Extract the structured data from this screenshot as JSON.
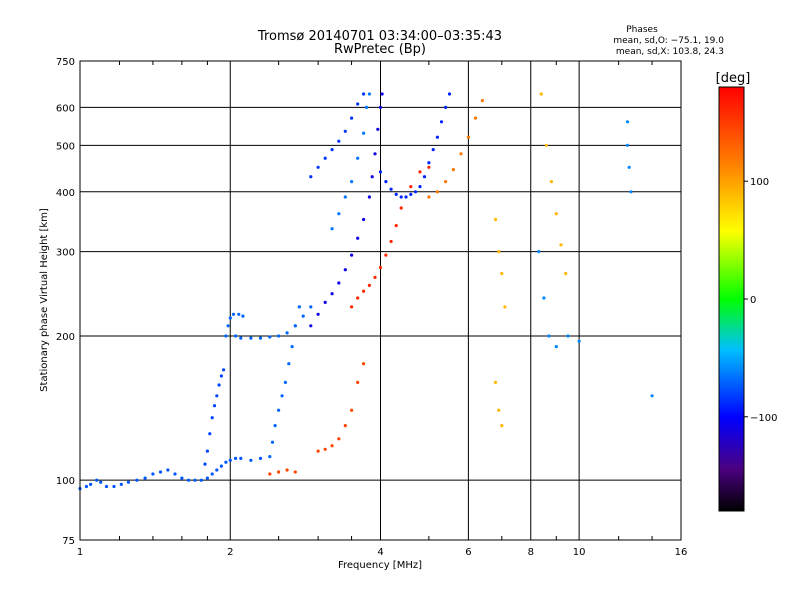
{
  "chart_data": {
    "type": "scatter",
    "title": "Tromsø 20140701 03:34:00–03:35:43",
    "subtitle": "RwPretec (Bp)",
    "xlabel": "Frequency [MHz]",
    "ylabel": "Stationary phase Virtual Height [km]",
    "x_scale": "log",
    "y_scale": "log",
    "xlim": [
      1,
      16
    ],
    "ylim": [
      75,
      750
    ],
    "x_ticks": [
      1,
      2,
      4,
      6,
      8,
      10,
      16
    ],
    "y_ticks": [
      75,
      100,
      200,
      300,
      400,
      500,
      600,
      750
    ],
    "grid": true,
    "phase_info": {
      "title": "Phases",
      "line_o": "mean, sd,O: −75.1, 19.0",
      "line_x": "mean, sd,X: 103.8, 24.3"
    },
    "colorbar": {
      "label": "[deg]",
      "min": -180,
      "max": 180,
      "ticks": [
        100,
        0,
        -100
      ],
      "colormap": "rainbow"
    },
    "series": [
      {
        "name": "",
        "color_value": -75,
        "points": [
          [
            1.0,
            96
          ],
          [
            1.03,
            97
          ],
          [
            1.05,
            98
          ],
          [
            1.08,
            100
          ],
          [
            1.1,
            99
          ],
          [
            1.13,
            97
          ],
          [
            1.17,
            97
          ],
          [
            1.21,
            98
          ],
          [
            1.25,
            99
          ],
          [
            1.3,
            100
          ],
          [
            1.35,
            101
          ],
          [
            1.4,
            103
          ],
          [
            1.45,
            104
          ],
          [
            1.5,
            105
          ],
          [
            1.55,
            103
          ],
          [
            1.6,
            101
          ],
          [
            1.65,
            100
          ],
          [
            1.7,
            100
          ],
          [
            1.75,
            100
          ],
          [
            1.8,
            101
          ],
          [
            1.84,
            103
          ],
          [
            1.88,
            105
          ],
          [
            1.92,
            107
          ],
          [
            1.96,
            109
          ],
          [
            2.0,
            110
          ],
          [
            2.05,
            111
          ],
          [
            2.1,
            111
          ],
          [
            2.2,
            110
          ],
          [
            2.3,
            111
          ]
        ]
      },
      {
        "name": "",
        "color_value": -80,
        "points": [
          [
            1.78,
            108
          ],
          [
            1.8,
            115
          ],
          [
            1.82,
            125
          ],
          [
            1.84,
            135
          ],
          [
            1.86,
            143
          ],
          [
            1.88,
            150
          ],
          [
            1.9,
            158
          ],
          [
            1.92,
            165
          ],
          [
            1.94,
            170
          ]
        ]
      },
      {
        "name": "",
        "color_value": -70,
        "points": [
          [
            1.96,
            200
          ],
          [
            1.98,
            210
          ],
          [
            2.0,
            218
          ],
          [
            2.03,
            222
          ],
          [
            2.08,
            222
          ],
          [
            2.12,
            220
          ],
          [
            2.05,
            200
          ],
          [
            2.1,
            198
          ],
          [
            2.2,
            198
          ],
          [
            2.3,
            198
          ],
          [
            2.4,
            199
          ],
          [
            2.5,
            200
          ],
          [
            2.6,
            203
          ],
          [
            2.7,
            210
          ],
          [
            2.8,
            220
          ],
          [
            2.9,
            230
          ]
        ]
      },
      {
        "name": "",
        "color_value": -70,
        "points": [
          [
            2.4,
            112
          ],
          [
            2.43,
            120
          ],
          [
            2.46,
            130
          ],
          [
            2.5,
            140
          ],
          [
            2.54,
            150
          ],
          [
            2.58,
            160
          ],
          [
            2.62,
            175
          ],
          [
            2.66,
            190
          ],
          [
            2.7,
            210
          ],
          [
            2.75,
            230
          ]
        ]
      },
      {
        "name": "",
        "color_value": -110,
        "points": [
          [
            2.9,
            210
          ],
          [
            3.0,
            222
          ],
          [
            3.1,
            235
          ],
          [
            3.2,
            245
          ],
          [
            3.3,
            258
          ],
          [
            3.4,
            275
          ],
          [
            3.5,
            295
          ],
          [
            3.6,
            320
          ],
          [
            3.7,
            350
          ],
          [
            3.8,
            390
          ],
          [
            3.85,
            430
          ],
          [
            3.9,
            480
          ],
          [
            3.95,
            540
          ],
          [
            4.0,
            600
          ],
          [
            4.03,
            640
          ]
        ]
      },
      {
        "name": "",
        "color_value": -65,
        "points": [
          [
            3.2,
            335
          ],
          [
            3.3,
            360
          ],
          [
            3.4,
            390
          ],
          [
            3.5,
            420
          ],
          [
            3.6,
            470
          ],
          [
            3.7,
            530
          ],
          [
            3.75,
            600
          ],
          [
            3.8,
            640
          ]
        ]
      },
      {
        "name": "",
        "color_value": -85,
        "points": [
          [
            2.9,
            430
          ],
          [
            3.0,
            450
          ],
          [
            3.1,
            470
          ],
          [
            3.2,
            490
          ],
          [
            3.3,
            510
          ],
          [
            3.4,
            535
          ],
          [
            3.5,
            570
          ],
          [
            3.6,
            610
          ],
          [
            3.7,
            640
          ]
        ]
      },
      {
        "name": "",
        "color_value": -90,
        "points": [
          [
            4.0,
            440
          ],
          [
            4.1,
            420
          ],
          [
            4.2,
            405
          ],
          [
            4.3,
            395
          ],
          [
            4.4,
            390
          ],
          [
            4.5,
            390
          ],
          [
            4.6,
            395
          ],
          [
            4.7,
            400
          ],
          [
            4.8,
            410
          ],
          [
            4.9,
            430
          ],
          [
            5.0,
            460
          ],
          [
            5.1,
            490
          ],
          [
            5.2,
            520
          ],
          [
            5.3,
            560
          ],
          [
            5.4,
            600
          ],
          [
            5.5,
            640
          ]
        ]
      },
      {
        "name": "",
        "color_value": 120,
        "points": [
          [
            5.0,
            390
          ],
          [
            5.2,
            400
          ],
          [
            5.4,
            420
          ],
          [
            5.6,
            445
          ],
          [
            5.8,
            480
          ],
          [
            6.0,
            520
          ],
          [
            6.2,
            570
          ],
          [
            6.4,
            620
          ]
        ]
      },
      {
        "name": "",
        "color_value": 160,
        "points": [
          [
            3.5,
            230
          ],
          [
            3.6,
            240
          ],
          [
            3.7,
            248
          ],
          [
            3.8,
            255
          ],
          [
            3.9,
            265
          ],
          [
            4.0,
            278
          ],
          [
            4.1,
            295
          ],
          [
            4.2,
            315
          ],
          [
            4.3,
            340
          ],
          [
            4.4,
            370
          ],
          [
            4.6,
            410
          ],
          [
            4.8,
            440
          ],
          [
            5.0,
            450
          ]
        ]
      },
      {
        "name": "",
        "color_value": 145,
        "points": [
          [
            2.4,
            103
          ],
          [
            2.5,
            104
          ],
          [
            2.6,
            105
          ],
          [
            2.7,
            104
          ],
          [
            3.0,
            115
          ],
          [
            3.1,
            116
          ],
          [
            3.2,
            118
          ],
          [
            3.3,
            122
          ],
          [
            3.4,
            130
          ],
          [
            3.5,
            140
          ],
          [
            3.6,
            160
          ],
          [
            3.7,
            175
          ]
        ]
      },
      {
        "name": "",
        "color_value": 90,
        "points": [
          [
            6.8,
            350
          ],
          [
            6.9,
            300
          ],
          [
            7.0,
            270
          ],
          [
            7.1,
            230
          ],
          [
            6.8,
            160
          ],
          [
            6.9,
            140
          ],
          [
            7.0,
            130
          ],
          [
            8.4,
            640
          ],
          [
            8.6,
            500
          ],
          [
            8.8,
            420
          ],
          [
            9.0,
            360
          ],
          [
            9.2,
            310
          ],
          [
            9.4,
            270
          ]
        ]
      },
      {
        "name": "",
        "color_value": -60,
        "points": [
          [
            8.3,
            300
          ],
          [
            8.5,
            240
          ],
          [
            8.7,
            200
          ],
          [
            9.0,
            190
          ],
          [
            9.5,
            200
          ],
          [
            10.0,
            195
          ],
          [
            12.5,
            560
          ],
          [
            12.5,
            500
          ],
          [
            12.6,
            450
          ],
          [
            12.7,
            400
          ],
          [
            14.0,
            150
          ]
        ]
      }
    ]
  }
}
